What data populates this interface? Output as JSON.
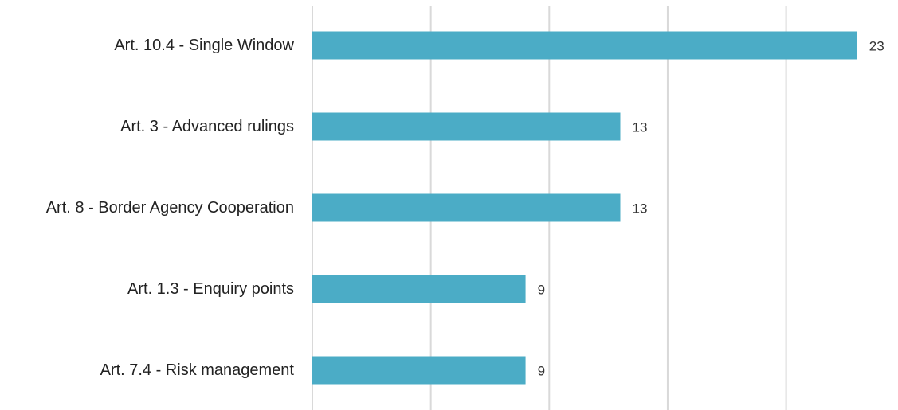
{
  "chart_data": {
    "type": "bar",
    "orientation": "horizontal",
    "title": "",
    "xlabel": "",
    "ylabel": "",
    "categories": [
      "Art. 10.4 - Single Window",
      "Art. 3 - Advanced rulings",
      "Art. 8 - Border Agency Cooperation",
      "Art. 1.3 - Enquiry points",
      "Art. 7.4 - Risk management"
    ],
    "values": [
      23,
      13,
      13,
      9,
      9
    ],
    "xlim": [
      0,
      25
    ],
    "gridlines": [
      0,
      5,
      10,
      15,
      20
    ],
    "grid": true,
    "legend": "none",
    "data_labels": true,
    "bar_color": "#4BACC6"
  }
}
